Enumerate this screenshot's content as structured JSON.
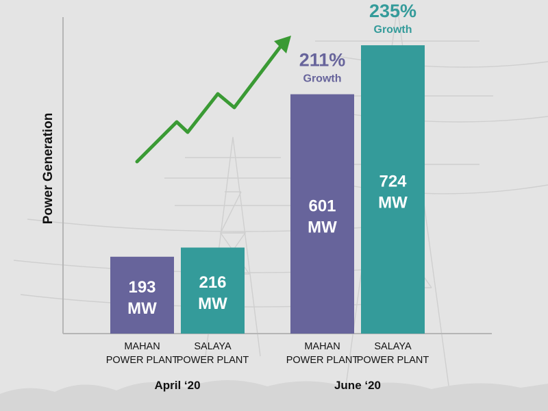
{
  "chart_data": {
    "type": "bar",
    "ylabel": "Power Generation",
    "groups": [
      {
        "label": "April ‘20"
      },
      {
        "label": "June ‘20"
      }
    ],
    "bars": [
      {
        "group": 0,
        "label_line1": "MAHAN",
        "label_line2": "POWER PLANT",
        "value": 193,
        "value_text": "193",
        "unit": "MW",
        "color": "#67649b"
      },
      {
        "group": 0,
        "label_line1": "SALAYA",
        "label_line2": "POWER PLANT",
        "value": 216,
        "value_text": "216",
        "unit": "MW",
        "color": "#349b9a"
      },
      {
        "group": 1,
        "label_line1": "MAHAN",
        "label_line2": "POWER PLANT",
        "value": 601,
        "value_text": "601",
        "unit": "MW",
        "color": "#67649b",
        "growth_pct": "211%",
        "growth_word": "Growth"
      },
      {
        "group": 1,
        "label_line1": "SALAYA",
        "label_line2": "POWER PLANT",
        "value": 724,
        "value_text": "724",
        "unit": "MW",
        "color": "#349b9a",
        "growth_pct": "235%",
        "growth_word": "Growth"
      }
    ],
    "ylim": [
      0,
      774
    ],
    "grid": false,
    "legend": "none",
    "arrow_color": "#3a9a34",
    "axis_color": "#b5b5b5",
    "background_color": "#e4e4e4"
  }
}
